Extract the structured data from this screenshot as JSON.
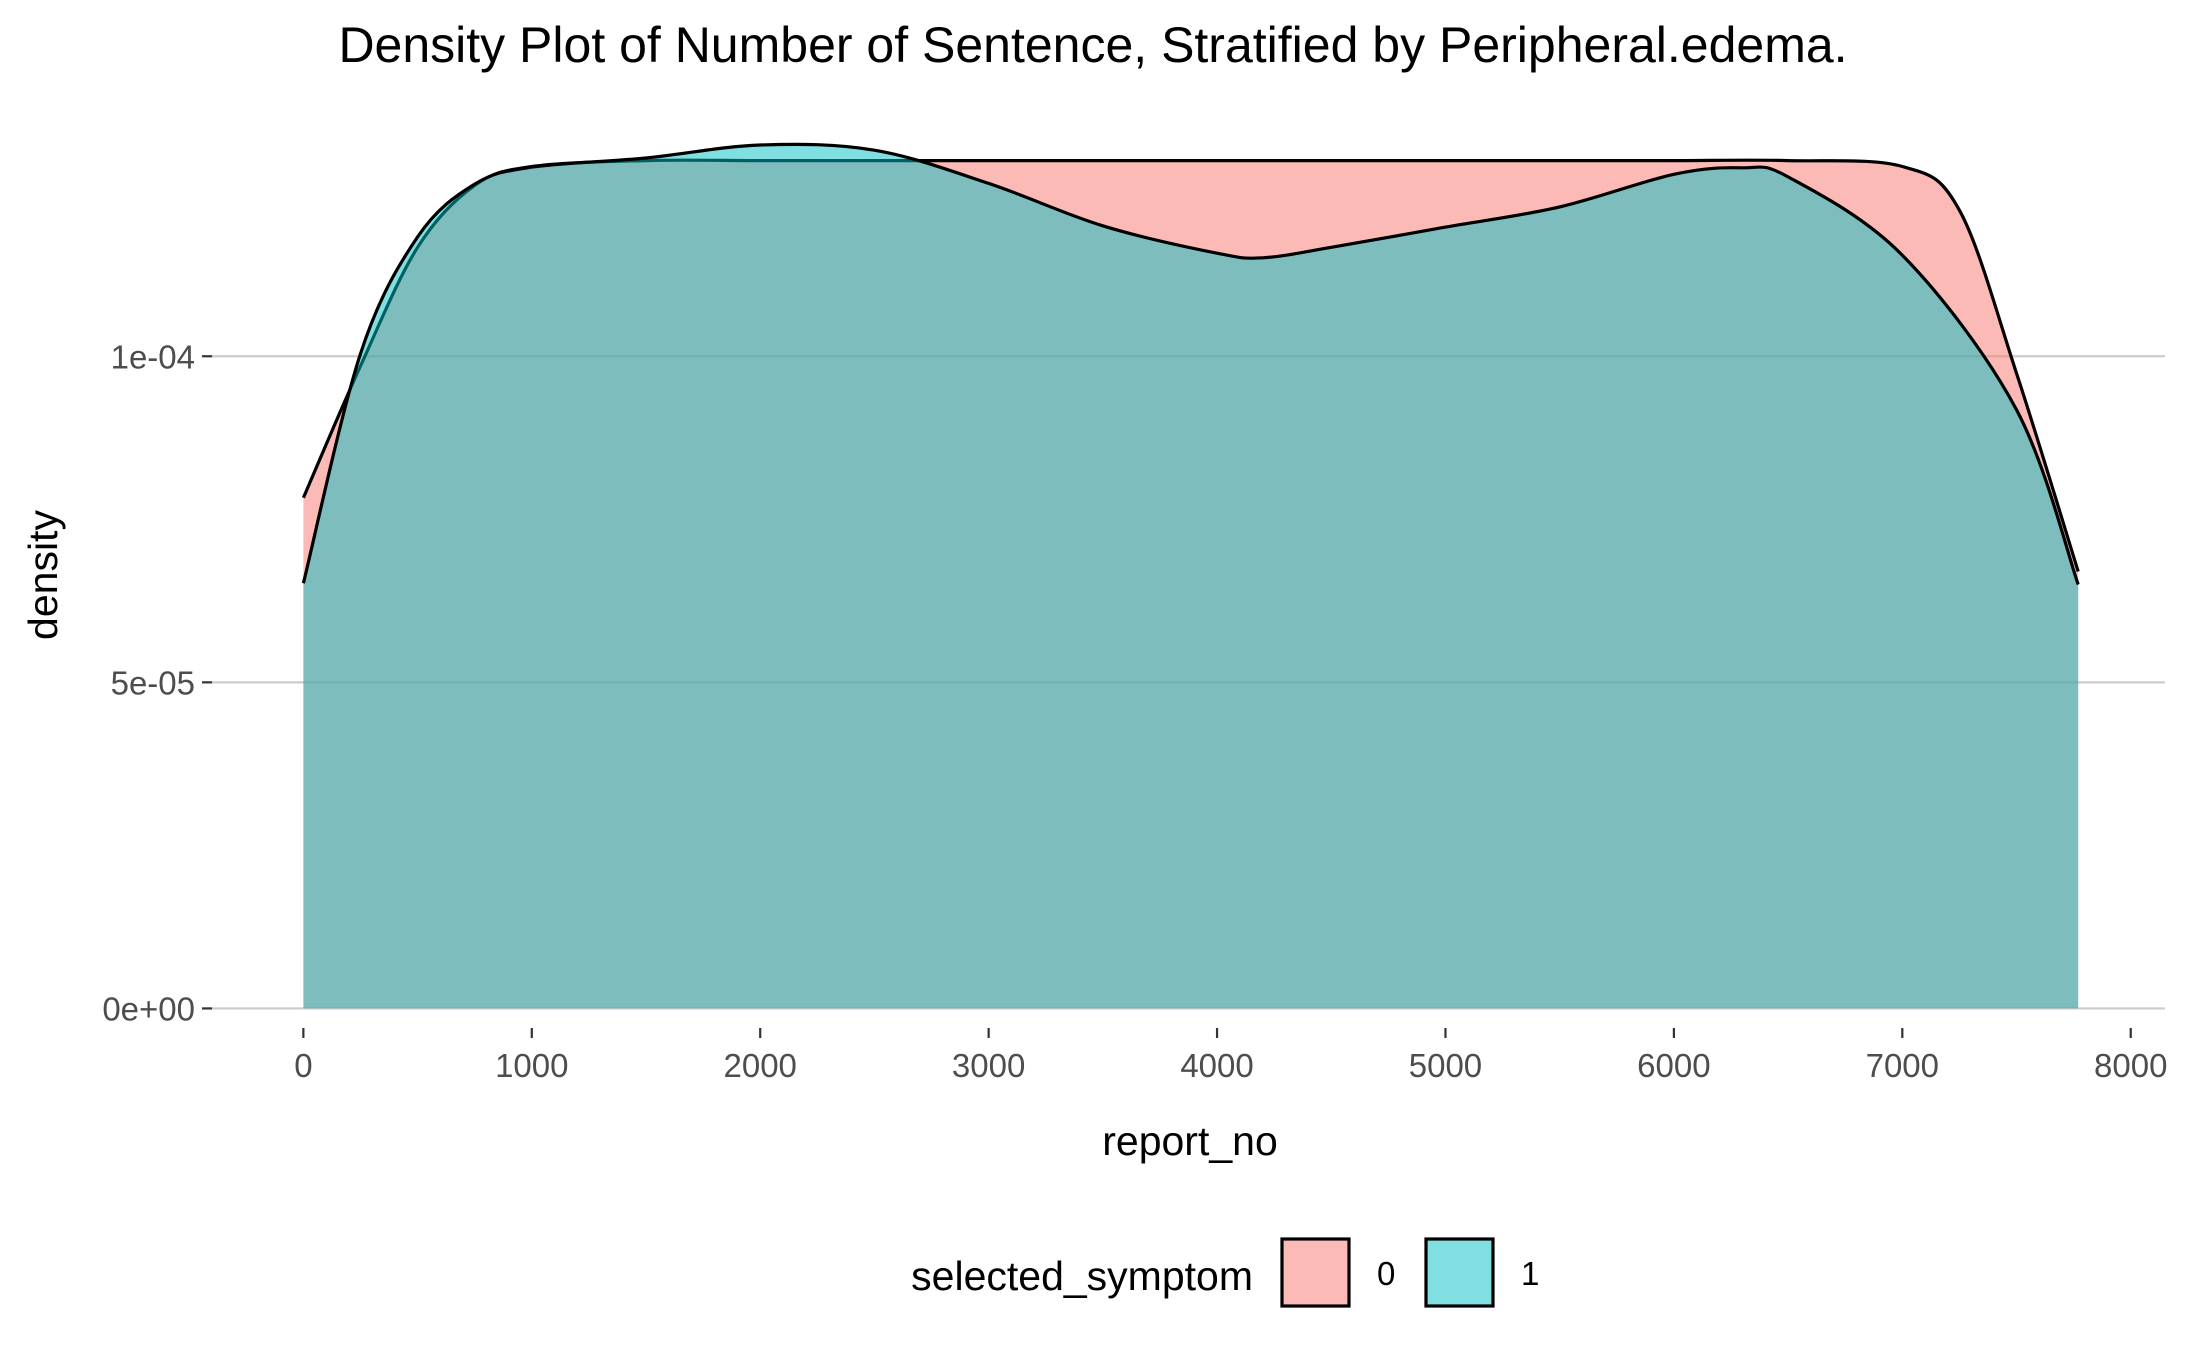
{
  "chart_data": {
    "type": "area",
    "title": "Density Plot of Number of Sentence, Stratified by Peripheral.edema.",
    "xlabel": "report_no",
    "ylabel": "density",
    "xlim": [
      -400,
      8150
    ],
    "ylim": [
      -3e-06,
      0.000135
    ],
    "x_ticks": [
      0,
      1000,
      2000,
      3000,
      4000,
      5000,
      6000,
      7000,
      8000
    ],
    "x_tick_labels": [
      "0",
      "1000",
      "2000",
      "3000",
      "4000",
      "5000",
      "6000",
      "7000",
      "8000"
    ],
    "y_ticks": [
      0,
      5e-05,
      0.0001
    ],
    "y_tick_labels": [
      "0e+00",
      "5e-05",
      "1e-04"
    ],
    "grid": "horizontal major only",
    "legend": {
      "title": "selected_symptom",
      "position": "bottom",
      "entries": [
        {
          "label": "0",
          "color": "#F8766D"
        },
        {
          "label": "1",
          "color": "#00BFC4"
        }
      ]
    },
    "series": [
      {
        "name": "0",
        "color": "#F8766D",
        "x": [
          0,
          250,
          500,
          750,
          1000,
          1500,
          2000,
          2500,
          3000,
          3500,
          4000,
          4500,
          5000,
          5500,
          6000,
          6500,
          7000,
          7250,
          7500,
          7770
        ],
        "y": [
          7.83e-05,
          9.85e-05,
          0.0001167,
          0.0001262,
          0.0001291,
          0.00013,
          0.00013,
          0.00013,
          0.00013,
          0.00013,
          0.00013,
          0.00013,
          0.00013,
          0.00013,
          0.00013,
          0.00013,
          0.0001291,
          0.0001224,
          9.74e-05,
          6.7e-05
        ]
      },
      {
        "name": "1",
        "color": "#00BFC4",
        "x": [
          0,
          250,
          500,
          750,
          1000,
          1500,
          2000,
          2500,
          3000,
          3500,
          4000,
          4200,
          4500,
          5000,
          5500,
          6000,
          6300,
          6500,
          7000,
          7500,
          7770
        ],
        "y": [
          6.52e-05,
          0.0001004,
          0.0001183,
          0.0001264,
          0.000129,
          0.0001304,
          0.0001324,
          0.0001316,
          0.0001265,
          0.00012,
          0.0001158,
          0.0001151,
          0.0001167,
          0.0001198,
          0.0001229,
          0.0001279,
          0.0001289,
          0.0001275,
          0.0001155,
          9.18e-05,
          6.5e-05
        ]
      }
    ]
  }
}
